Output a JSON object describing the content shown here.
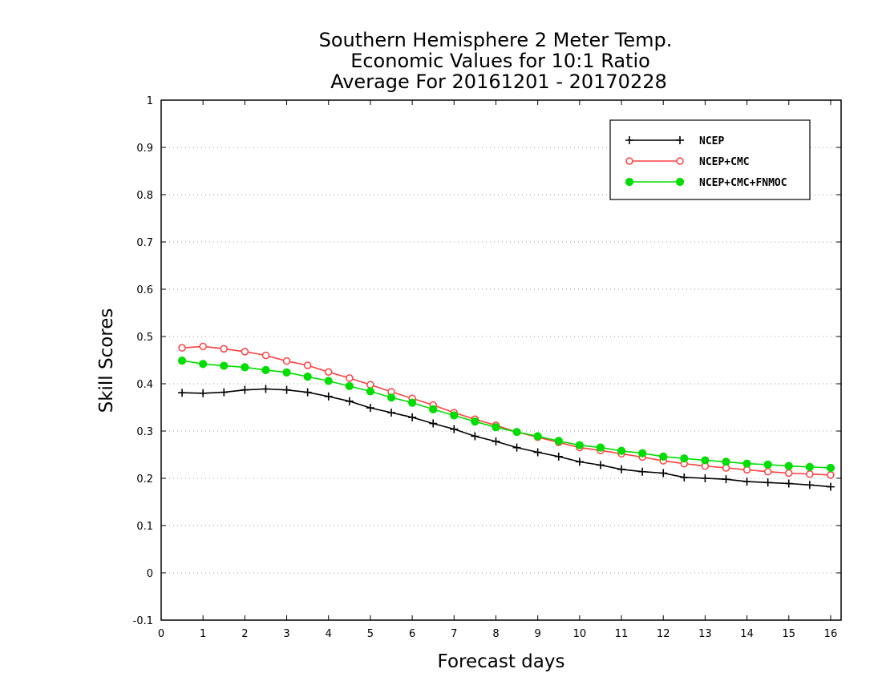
{
  "chart_data": {
    "type": "line",
    "title_lines": [
      "Southern Hemisphere 2 Meter Temp.",
      "Economic Values for 10:1 Ratio",
      "Average For 20161201 - 20170228"
    ],
    "xlabel": "Forecast days",
    "ylabel": "Skill Scores",
    "xlim": [
      0,
      16.25
    ],
    "ylim": [
      -0.1,
      1
    ],
    "x_ticks": [
      "0",
      "1",
      "2",
      "3",
      "4",
      "5",
      "6",
      "7",
      "8",
      "9",
      "10",
      "11",
      "12",
      "13",
      "14",
      "15",
      "16"
    ],
    "y_ticks": [
      "-0.1",
      "0",
      "0.1",
      "0.2",
      "0.3",
      "0.4",
      "0.5",
      "0.6",
      "0.7",
      "0.8",
      "0.9",
      "1"
    ],
    "grid": "horizontal dotted",
    "legend_position": "top-right",
    "x": [
      0.5,
      1,
      1.5,
      2,
      2.5,
      3,
      3.5,
      4,
      4.5,
      5,
      5.5,
      6,
      6.5,
      7,
      7.5,
      8,
      8.5,
      9,
      9.5,
      10,
      10.5,
      11,
      11.5,
      12,
      12.5,
      13,
      13.5,
      14,
      14.5,
      15,
      15.5,
      16
    ],
    "series": [
      {
        "name": "NCEP",
        "color": "#000000",
        "marker": "plus",
        "values": [
          0.381,
          0.38,
          0.382,
          0.387,
          0.389,
          0.387,
          0.382,
          0.373,
          0.363,
          0.349,
          0.339,
          0.329,
          0.316,
          0.304,
          0.289,
          0.278,
          0.265,
          0.255,
          0.246,
          0.235,
          0.228,
          0.219,
          0.214,
          0.211,
          0.202,
          0.2,
          0.198,
          0.193,
          0.191,
          0.189,
          0.186,
          0.182
        ]
      },
      {
        "name": "NCEP+CMC",
        "color": "#ff4040",
        "marker": "open-circle",
        "values": [
          0.476,
          0.479,
          0.474,
          0.468,
          0.46,
          0.448,
          0.439,
          0.425,
          0.412,
          0.398,
          0.383,
          0.369,
          0.355,
          0.339,
          0.325,
          0.312,
          0.298,
          0.287,
          0.276,
          0.265,
          0.259,
          0.252,
          0.245,
          0.237,
          0.231,
          0.226,
          0.222,
          0.218,
          0.214,
          0.211,
          0.209,
          0.207
        ]
      },
      {
        "name": "NCEP+CMC+FNMOC",
        "color": "#00dd00",
        "marker": "filled-circle",
        "values": [
          0.449,
          0.442,
          0.438,
          0.435,
          0.429,
          0.424,
          0.415,
          0.406,
          0.395,
          0.384,
          0.371,
          0.36,
          0.346,
          0.333,
          0.32,
          0.308,
          0.298,
          0.289,
          0.279,
          0.27,
          0.265,
          0.258,
          0.253,
          0.246,
          0.242,
          0.238,
          0.235,
          0.231,
          0.229,
          0.226,
          0.224,
          0.222
        ]
      }
    ]
  }
}
